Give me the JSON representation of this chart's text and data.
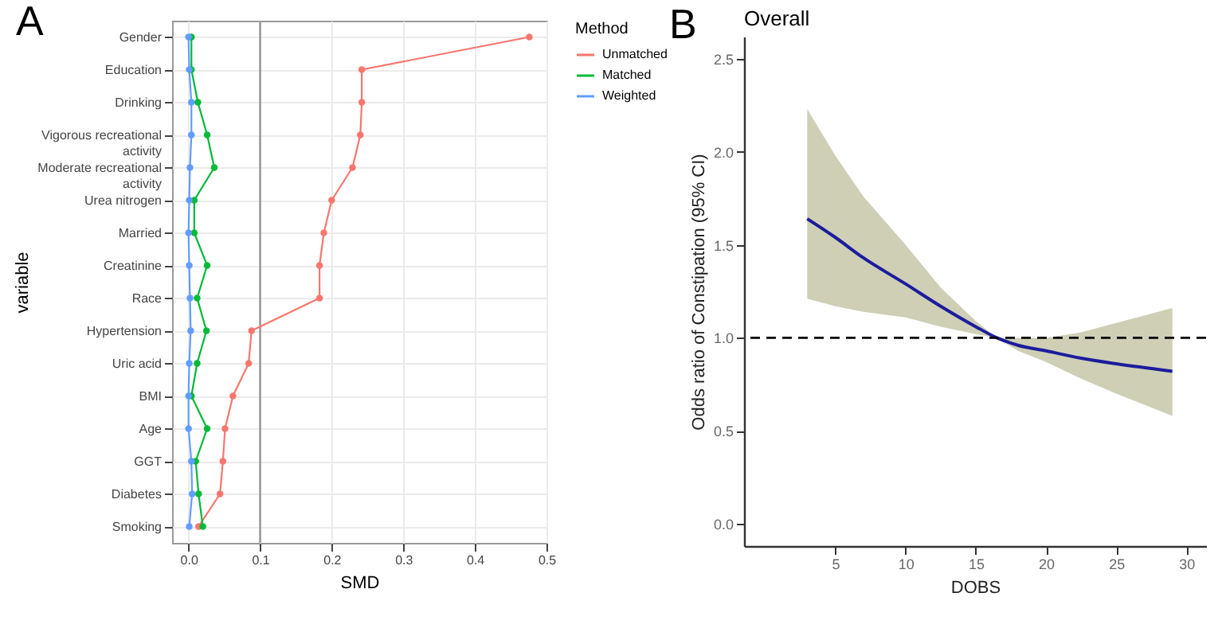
{
  "chart_data": [
    {
      "type": "line",
      "orientation": "horizontal",
      "annotations": [
        "A"
      ],
      "xlabel": "SMD",
      "ylabel": "variable",
      "legend_title": "Method",
      "legend": "right",
      "grid": true,
      "marker": "circle",
      "categories": [
        "Gender",
        "Education",
        "Drinking",
        "Vigorous recreational activity",
        "Moderate recreational activity",
        "Urea nitrogen",
        "Married",
        "Creatinine",
        "Race",
        "Hypertension",
        "Uric acid",
        "BMI",
        "Age",
        "GGT",
        "Diabetes",
        "Smoking"
      ],
      "xlim": [
        -0.023,
        0.5
      ],
      "xticks": [
        {
          "value": 0,
          "label": "0.0"
        },
        0.1,
        0.2,
        0.3,
        0.4,
        0.5
      ],
      "ref_lines": [
        {
          "axis": "x",
          "value": 0.1,
          "color": "#999999"
        }
      ],
      "series": [
        {
          "name": "Unmatched",
          "color": "#f8766d",
          "values": [
            0.476,
            0.242,
            0.242,
            0.24,
            0.229,
            0.2,
            0.189,
            0.183,
            0.183,
            0.088,
            0.084,
            0.062,
            0.051,
            0.048,
            0.044,
            0.014
          ]
        },
        {
          "name": "Matched",
          "color": "#00ba38",
          "values": [
            0.004,
            0.004,
            0.013,
            0.026,
            0.036,
            0.008,
            0.008,
            0.026,
            0.012,
            0.025,
            0.012,
            0.004,
            0.026,
            0.01,
            0.014,
            0.02
          ]
        },
        {
          "name": "Weighted",
          "color": "#619cff",
          "values": [
            0.0,
            0.001,
            0.004,
            0.004,
            0.002,
            0.001,
            0.0,
            0.001,
            0.002,
            0.003,
            0.001,
            0.0,
            0.0,
            0.004,
            0.005,
            0.001
          ]
        }
      ]
    },
    {
      "type": "line",
      "title": "Overall",
      "annotations": [
        "B"
      ],
      "xlabel": "DOBS",
      "ylabel": "Odds ratio of Constipation (95% CI)",
      "grid": false,
      "legend": false,
      "xlim": [
        -1.5,
        31.4
      ],
      "xticks": [
        5,
        10,
        15,
        20,
        25,
        30
      ],
      "ylim": [
        -0.12,
        2.62
      ],
      "yticks": [
        {
          "value": 0,
          "label": "0.0"
        },
        0.5,
        {
          "value": 1,
          "label": "1.0"
        },
        1.5,
        {
          "value": 2,
          "label": "2.0"
        },
        2.5
      ],
      "ref_lines": [
        {
          "axis": "y",
          "value": 1,
          "color": "#000000",
          "line_style": "dashed"
        }
      ],
      "series": [
        {
          "color": "#1c1c9c",
          "x": [
            3,
            5,
            7,
            10,
            12.5,
            15,
            16.5,
            18,
            20,
            22.5,
            25,
            29
          ],
          "values": [
            1.64,
            1.54,
            1.43,
            1.29,
            1.17,
            1.06,
            1.0,
            0.96,
            0.93,
            0.89,
            0.86,
            0.82
          ],
          "lower": [
            1.21,
            1.17,
            1.14,
            1.11,
            1.06,
            1.02,
            1.0,
            0.93,
            0.87,
            0.78,
            0.7,
            0.58
          ],
          "upper": [
            2.23,
            1.98,
            1.76,
            1.5,
            1.27,
            1.09,
            1.0,
            1.0,
            1.0,
            1.03,
            1.08,
            1.16
          ]
        }
      ]
    }
  ]
}
